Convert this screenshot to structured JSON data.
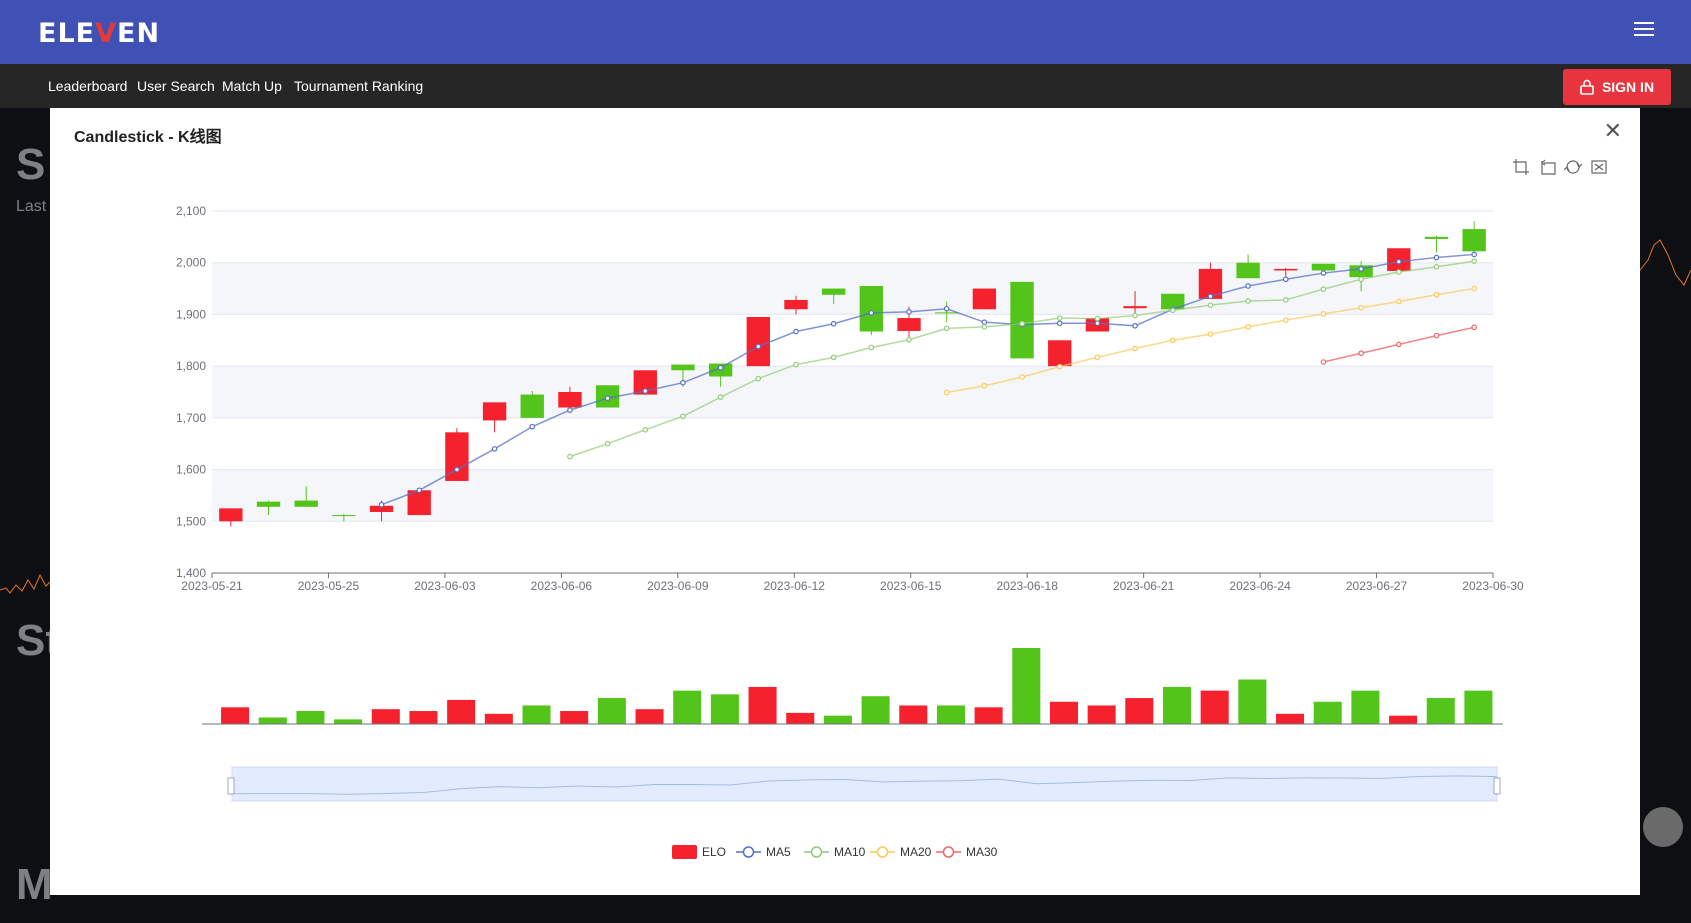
{
  "app": {
    "logo_prefix": "ELE",
    "logo_v": "V",
    "logo_suffix": "EN"
  },
  "nav": {
    "items": [
      "Leaderboard",
      "User Search",
      "Match Up",
      "Tournament Ranking"
    ],
    "signin": "SIGN IN"
  },
  "background": {
    "heading_s": "S",
    "heading_st": "St",
    "heading_m": "M",
    "last": "Last"
  },
  "modal": {
    "title": "Candlestick - K线图"
  },
  "colors": {
    "up": "#f5222d",
    "down": "#52c41a",
    "ma5": "#5470c6",
    "ma10": "#91cc75",
    "ma20": "#fac858",
    "ma30": "#ee6666",
    "header": "#3f51b5"
  },
  "chart_data": {
    "type": "candlestick",
    "x_tick_labels": [
      "2023-05-21",
      "2023-05-25",
      "2023-06-03",
      "2023-06-06",
      "2023-06-09",
      "2023-06-12",
      "2023-06-15",
      "2023-06-18",
      "2023-06-21",
      "2023-06-24",
      "2023-06-27",
      "2023-06-30"
    ],
    "y_ticks": [
      "1,400",
      "1,500",
      "1,600",
      "1,700",
      "1,800",
      "1,900",
      "2,000",
      "2,100"
    ],
    "ylim": [
      1400,
      2100
    ],
    "candles": [
      {
        "o": 1500,
        "c": 1525,
        "l": 1490,
        "h": 1525
      },
      {
        "o": 1538,
        "c": 1528,
        "l": 1512,
        "h": 1540
      },
      {
        "o": 1540,
        "c": 1528,
        "l": 1528,
        "h": 1568
      },
      {
        "o": 1512,
        "c": 1510,
        "l": 1500,
        "h": 1514
      },
      {
        "o": 1518,
        "c": 1530,
        "l": 1500,
        "h": 1540
      },
      {
        "o": 1512,
        "c": 1560,
        "l": 1512,
        "h": 1562
      },
      {
        "o": 1578,
        "c": 1672,
        "l": 1578,
        "h": 1680
      },
      {
        "o": 1695,
        "c": 1730,
        "l": 1672,
        "h": 1730
      },
      {
        "o": 1745,
        "c": 1700,
        "l": 1700,
        "h": 1752
      },
      {
        "o": 1720,
        "c": 1750,
        "l": 1720,
        "h": 1760
      },
      {
        "o": 1763,
        "c": 1720,
        "l": 1720,
        "h": 1763
      },
      {
        "o": 1745,
        "c": 1792,
        "l": 1745,
        "h": 1792
      },
      {
        "o": 1803,
        "c": 1792,
        "l": 1760,
        "h": 1803
      },
      {
        "o": 1805,
        "c": 1780,
        "l": 1760,
        "h": 1805
      },
      {
        "o": 1800,
        "c": 1895,
        "l": 1800,
        "h": 1895
      },
      {
        "o": 1910,
        "c": 1928,
        "l": 1900,
        "h": 1936
      },
      {
        "o": 1950,
        "c": 1938,
        "l": 1920,
        "h": 1950
      },
      {
        "o": 1955,
        "c": 1867,
        "l": 1860,
        "h": 1955
      },
      {
        "o": 1868,
        "c": 1893,
        "l": 1850,
        "h": 1915
      },
      {
        "o": 1904,
        "c": 1902,
        "l": 1885,
        "h": 1925
      },
      {
        "o": 1910,
        "c": 1950,
        "l": 1910,
        "h": 1950
      },
      {
        "o": 1963,
        "c": 1815,
        "l": 1815,
        "h": 1963
      },
      {
        "o": 1800,
        "c": 1850,
        "l": 1800,
        "h": 1850
      },
      {
        "o": 1867,
        "c": 1893,
        "l": 1867,
        "h": 1893
      },
      {
        "o": 1912,
        "c": 1916,
        "l": 1895,
        "h": 1945
      },
      {
        "o": 1940,
        "c": 1910,
        "l": 1905,
        "h": 1940
      },
      {
        "o": 1930,
        "c": 1988,
        "l": 1930,
        "h": 2000
      },
      {
        "o": 2000,
        "c": 1970,
        "l": 1970,
        "h": 2016
      },
      {
        "o": 1985,
        "c": 1988,
        "l": 1965,
        "h": 1990
      },
      {
        "o": 1998,
        "c": 1985,
        "l": 1980,
        "h": 1998
      },
      {
        "o": 1995,
        "c": 1972,
        "l": 1945,
        "h": 2003
      },
      {
        "o": 1984,
        "c": 2028,
        "l": 1984,
        "h": 2028
      },
      {
        "o": 2050,
        "c": 2046,
        "l": 2020,
        "h": 2052
      },
      {
        "o": 2065,
        "c": 2022,
        "l": 2022,
        "h": 2080
      }
    ],
    "volumes": [
      18,
      7,
      14,
      5,
      16,
      14,
      26,
      11,
      20,
      14,
      28,
      16,
      36,
      32,
      40,
      12,
      9,
      30,
      20,
      20,
      18,
      82,
      24,
      20,
      28,
      40,
      36,
      48,
      11,
      24,
      36,
      9,
      28,
      36
    ],
    "ma5": [
      null,
      null,
      null,
      null,
      1532,
      1560,
      1600,
      1640,
      1683,
      1715,
      1738,
      1752,
      1768,
      1797,
      1838,
      1867,
      1882,
      1903,
      1905,
      1911,
      1885,
      1880,
      1883,
      1883,
      1878,
      1910,
      1935,
      1955,
      1968,
      1980,
      1988,
      2002,
      2010,
      2016
    ],
    "ma10": [
      null,
      null,
      null,
      null,
      null,
      null,
      null,
      null,
      null,
      1625,
      1650,
      1677,
      1703,
      1740,
      1776,
      1803,
      1817,
      1836,
      1851,
      1873,
      1876,
      1882,
      1893,
      1892,
      1898,
      1908,
      1918,
      1926,
      1928,
      1949,
      1968,
      1982,
      1992,
      2003
    ],
    "ma20": [
      null,
      null,
      null,
      null,
      null,
      null,
      null,
      null,
      null,
      null,
      null,
      null,
      null,
      null,
      null,
      null,
      null,
      null,
      null,
      1749,
      1762,
      1779,
      1799,
      1817,
      1834,
      1850,
      1862,
      1876,
      1889,
      1901,
      1913,
      1925,
      1938,
      1950
    ],
    "ma30": [
      null,
      null,
      null,
      null,
      null,
      null,
      null,
      null,
      null,
      null,
      null,
      null,
      null,
      null,
      null,
      null,
      null,
      null,
      null,
      null,
      null,
      null,
      null,
      null,
      null,
      null,
      null,
      null,
      null,
      1808,
      1825,
      1842,
      1859,
      1875
    ],
    "legend": [
      "ELO",
      "MA5",
      "MA10",
      "MA20",
      "MA30"
    ],
    "legend_position": "bottom-center"
  }
}
